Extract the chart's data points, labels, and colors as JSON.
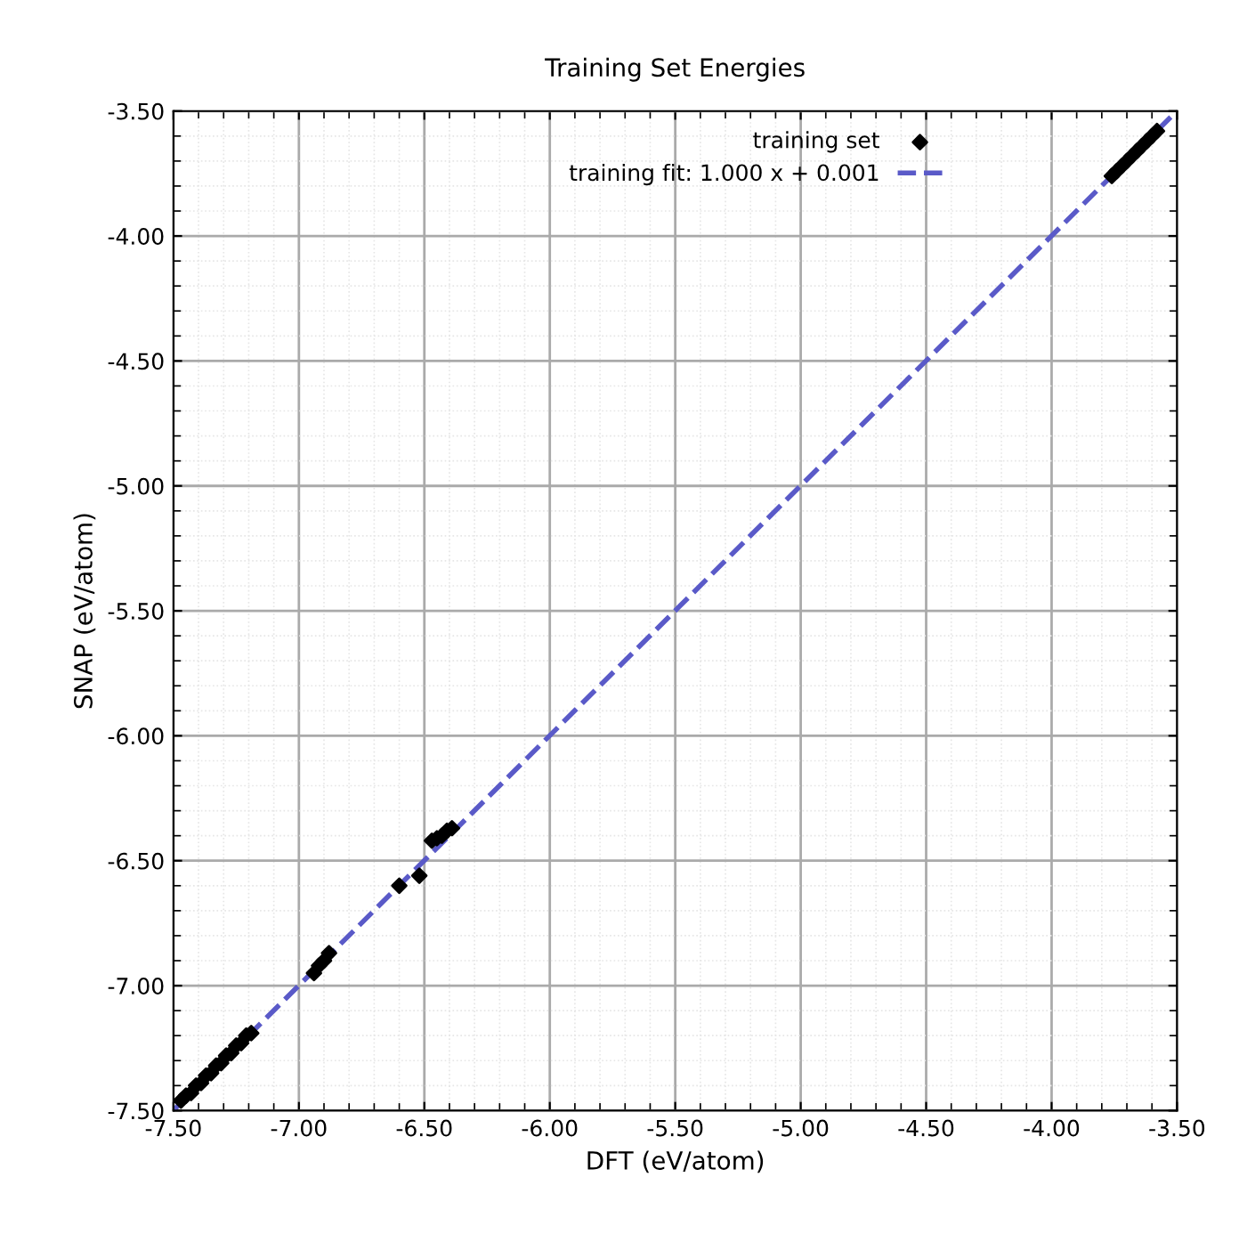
{
  "chart_data": {
    "type": "scatter",
    "title": "Training Set Energies",
    "xlabel": "DFT (eV/atom)",
    "ylabel": "SNAP (eV/atom)",
    "xlim": [
      -7.5,
      -3.5
    ],
    "ylim": [
      -7.5,
      -3.5
    ],
    "xticks": [
      {
        "value": -7.5,
        "label": "-7.50"
      },
      {
        "value": -7.0,
        "label": "-7.00"
      },
      {
        "value": -6.5,
        "label": "-6.50"
      },
      {
        "value": -6.0,
        "label": "-6.00"
      },
      {
        "value": -5.5,
        "label": "-5.50"
      },
      {
        "value": -5.0,
        "label": "-5.00"
      },
      {
        "value": -4.5,
        "label": "-4.50"
      },
      {
        "value": -4.0,
        "label": "-4.00"
      },
      {
        "value": -3.5,
        "label": "-3.50"
      }
    ],
    "yticks": [
      {
        "value": -7.5,
        "label": "-7.50"
      },
      {
        "value": -7.0,
        "label": "-7.00"
      },
      {
        "value": -6.5,
        "label": "-6.50"
      },
      {
        "value": -6.0,
        "label": "-6.00"
      },
      {
        "value": -5.5,
        "label": "-5.50"
      },
      {
        "value": -5.0,
        "label": "-5.00"
      },
      {
        "value": -4.5,
        "label": "-4.50"
      },
      {
        "value": -4.0,
        "label": "-4.00"
      },
      {
        "value": -3.5,
        "label": "-3.50"
      }
    ],
    "grid": true,
    "legend": "top",
    "marker": "diamond",
    "series": [
      {
        "name": "training set",
        "color": "#000000",
        "x": [
          -7.47,
          -7.45,
          -7.43,
          -7.41,
          -7.39,
          -7.37,
          -7.35,
          -7.33,
          -7.31,
          -7.29,
          -7.27,
          -7.25,
          -7.23,
          -7.21,
          -7.19,
          -6.94,
          -6.92,
          -6.9,
          -6.88,
          -6.6,
          -6.52,
          -6.47,
          -6.45,
          -6.43,
          -6.41,
          -6.39,
          -3.76,
          -3.74,
          -3.72,
          -3.7,
          -3.68,
          -3.66,
          -3.64,
          -3.62,
          -3.6,
          -3.58
        ],
        "values": [
          -7.46,
          -7.44,
          -7.43,
          -7.4,
          -7.39,
          -7.36,
          -7.35,
          -7.32,
          -7.31,
          -7.28,
          -7.27,
          -7.24,
          -7.23,
          -7.2,
          -7.19,
          -6.95,
          -6.92,
          -6.9,
          -6.87,
          -6.6,
          -6.56,
          -6.42,
          -6.41,
          -6.4,
          -6.38,
          -6.37,
          -3.76,
          -3.74,
          -3.72,
          -3.7,
          -3.68,
          -3.66,
          -3.64,
          -3.62,
          -3.6,
          -3.58
        ]
      },
      {
        "name": "training fit: 1.000 x + 0.001",
        "type": "line",
        "color": "#5a5ac8",
        "line_style": "dashed",
        "marker": "none",
        "x": [
          -7.5,
          -3.501
        ],
        "values": [
          -7.499,
          -3.5
        ]
      }
    ]
  }
}
